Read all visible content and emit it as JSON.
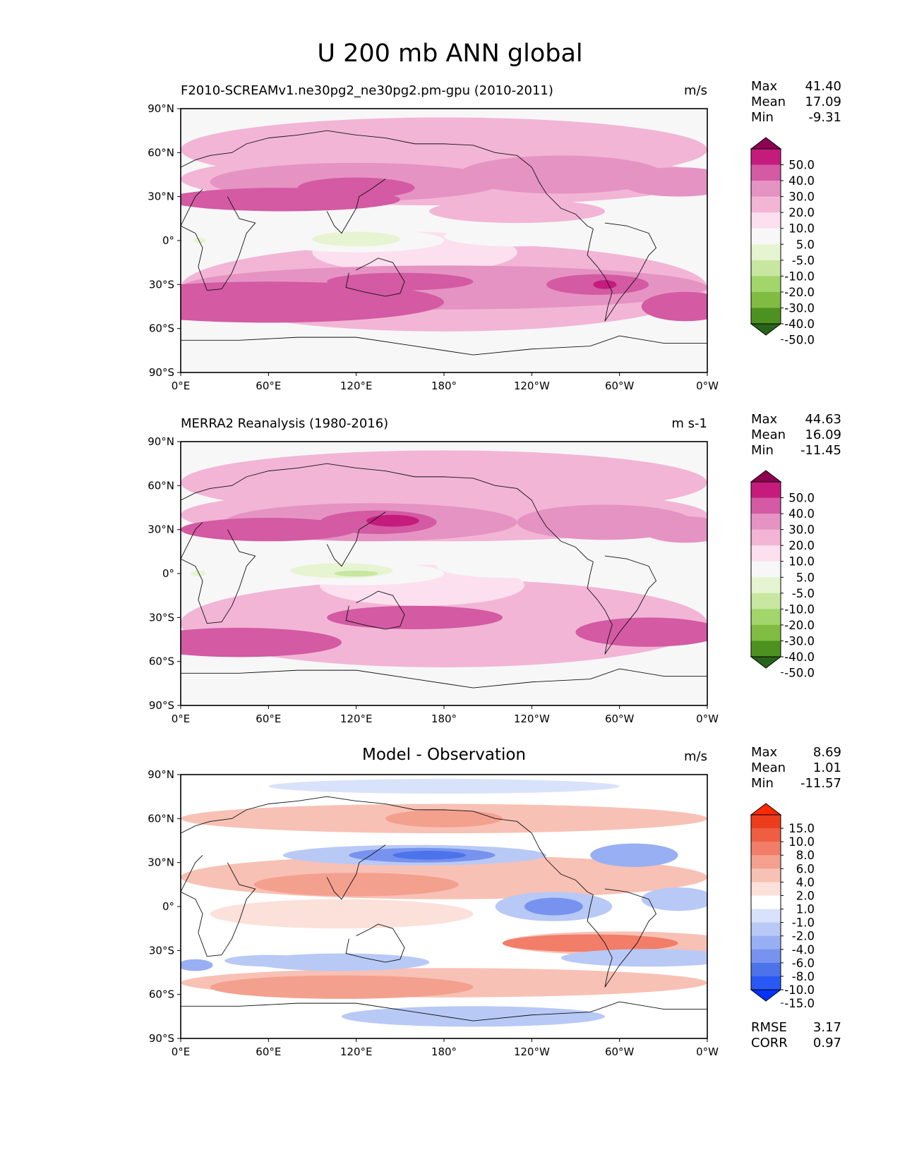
{
  "figure": {
    "title": "U 200 mb ANN global"
  },
  "colors": {
    "seq": [
      "#276419",
      "#4d9221",
      "#7fbc41",
      "#a2d56a",
      "#c7e7a0",
      "#e6f4d1",
      "#f7f7f7",
      "#fde0ef",
      "#f2b5d6",
      "#e593c3",
      "#d35aa3",
      "#c51b7d",
      "#8e0152"
    ],
    "diff": [
      "#0433ff",
      "#2a58f5",
      "#4d73ea",
      "#7793ef",
      "#98aff3",
      "#b8c9f6",
      "#d9e2fb",
      "#ffffff",
      "#fce0da",
      "#f8c1b5",
      "#f4a08f",
      "#f27d68",
      "#ef5e43",
      "#ec3e1e",
      "#fe2b00"
    ]
  },
  "chart_data": [
    {
      "type": "heatmap",
      "title": "F2010-SCREAMv1.ne30pg2_ne30pg2.pm-gpu (2010-2011)",
      "units": "m/s",
      "stats": {
        "max_label": "Max",
        "max": "41.40",
        "mean_label": "Mean",
        "mean": "17.09",
        "min_label": "Min",
        "min": "-9.31"
      },
      "xlabels": [
        "0°E",
        "60°E",
        "120°E",
        "180°",
        "120°W",
        "60°W",
        "0°W"
      ],
      "ylabels": [
        "90°N",
        "60°N",
        "30°N",
        "0°",
        "30°S",
        "60°S",
        "90°S"
      ],
      "xlim": [
        0,
        360
      ],
      "ylim": [
        -90,
        90
      ],
      "levels": [
        "50.0",
        "40.0",
        "30.0",
        "20.0",
        "10.0",
        "5.0",
        "-5.0",
        "-10.0",
        "-20.0",
        "-30.0",
        "-40.0",
        "-50.0"
      ],
      "cmap": "seq",
      "blobs": [
        {
          "lon": 180,
          "lat": 62,
          "rx": 180,
          "ry": 22,
          "level": 8
        },
        {
          "lon": 180,
          "lat": 42,
          "rx": 180,
          "ry": 18,
          "level": 8
        },
        {
          "lon": 180,
          "lat": -32,
          "rx": 180,
          "ry": 30,
          "level": 8
        },
        {
          "lon": 160,
          "lat": -8,
          "rx": 70,
          "ry": 14,
          "level": 7
        },
        {
          "lon": 120,
          "lat": 40,
          "rx": 100,
          "ry": 13,
          "level": 9
        },
        {
          "lon": 260,
          "lat": 45,
          "rx": 70,
          "ry": 13,
          "level": 9
        },
        {
          "lon": 340,
          "lat": 40,
          "rx": 40,
          "ry": 10,
          "level": 9
        },
        {
          "lon": 230,
          "lat": 20,
          "rx": 60,
          "ry": 8,
          "level": 8
        },
        {
          "lon": 70,
          "lat": 28,
          "rx": 80,
          "ry": 8,
          "level": 10
        },
        {
          "lon": 120,
          "lat": 36,
          "rx": 40,
          "ry": 7,
          "level": 10
        },
        {
          "lon": 180,
          "lat": -32,
          "rx": 180,
          "ry": 15,
          "level": 9
        },
        {
          "lon": 60,
          "lat": -42,
          "rx": 120,
          "ry": 14,
          "level": 10
        },
        {
          "lon": 150,
          "lat": -28,
          "rx": 50,
          "ry": 6,
          "level": 10
        },
        {
          "lon": 285,
          "lat": -30,
          "rx": 35,
          "ry": 7,
          "level": 10
        },
        {
          "lon": 290,
          "lat": -30,
          "rx": 8,
          "ry": 3,
          "level": 11
        },
        {
          "lon": 345,
          "lat": -45,
          "rx": 30,
          "ry": 10,
          "level": 10
        },
        {
          "lon": 120,
          "lat": 0,
          "rx": 60,
          "ry": 8,
          "level": 6
        },
        {
          "lon": 230,
          "lat": 3,
          "rx": 50,
          "ry": 7,
          "level": 6
        },
        {
          "lon": 120,
          "lat": 1,
          "rx": 30,
          "ry": 5,
          "level": 5
        },
        {
          "lon": 13,
          "lat": 0,
          "rx": 4,
          "ry": 2,
          "level": 5
        }
      ]
    },
    {
      "type": "heatmap",
      "title": "MERRA2 Reanalysis (1980-2016)",
      "units": "m s-1",
      "stats": {
        "max_label": "Max",
        "max": "44.63",
        "mean_label": "Mean",
        "mean": "16.09",
        "min_label": "Min",
        "min": "-11.45"
      },
      "xlabels": [
        "0°E",
        "60°E",
        "120°E",
        "180°",
        "120°W",
        "60°W",
        "0°W"
      ],
      "ylabels": [
        "90°N",
        "60°N",
        "30°N",
        "0°",
        "30°S",
        "60°S",
        "90°S"
      ],
      "xlim": [
        0,
        360
      ],
      "ylim": [
        -90,
        90
      ],
      "levels": [
        "50.0",
        "40.0",
        "30.0",
        "20.0",
        "10.0",
        "5.0",
        "-5.0",
        "-10.0",
        "-20.0",
        "-30.0",
        "-40.0",
        "-50.0"
      ],
      "cmap": "seq",
      "blobs": [
        {
          "lon": 180,
          "lat": 62,
          "rx": 180,
          "ry": 22,
          "level": 8
        },
        {
          "lon": 180,
          "lat": 40,
          "rx": 180,
          "ry": 18,
          "level": 8
        },
        {
          "lon": 180,
          "lat": -34,
          "rx": 180,
          "ry": 30,
          "level": 8
        },
        {
          "lon": 165,
          "lat": -8,
          "rx": 70,
          "ry": 14,
          "level": 7
        },
        {
          "lon": 130,
          "lat": 35,
          "rx": 100,
          "ry": 13,
          "level": 9
        },
        {
          "lon": 290,
          "lat": 35,
          "rx": 60,
          "ry": 12,
          "level": 9
        },
        {
          "lon": 345,
          "lat": 30,
          "rx": 30,
          "ry": 9,
          "level": 9
        },
        {
          "lon": 60,
          "lat": 30,
          "rx": 60,
          "ry": 8,
          "level": 10
        },
        {
          "lon": 135,
          "lat": 35,
          "rx": 40,
          "ry": 8,
          "level": 10
        },
        {
          "lon": 145,
          "lat": 36,
          "rx": 18,
          "ry": 4,
          "level": 11
        },
        {
          "lon": 160,
          "lat": -30,
          "rx": 60,
          "ry": 8,
          "level": 10
        },
        {
          "lon": 40,
          "lat": -47,
          "rx": 70,
          "ry": 10,
          "level": 10
        },
        {
          "lon": 320,
          "lat": -40,
          "rx": 50,
          "ry": 10,
          "level": 10
        },
        {
          "lon": 120,
          "lat": 0,
          "rx": 60,
          "ry": 8,
          "level": 6
        },
        {
          "lon": 225,
          "lat": 5,
          "rx": 50,
          "ry": 8,
          "level": 6
        },
        {
          "lon": 110,
          "lat": 2,
          "rx": 35,
          "ry": 5,
          "level": 5
        },
        {
          "lon": 120,
          "lat": 0,
          "rx": 15,
          "ry": 2,
          "level": 4
        },
        {
          "lon": 12,
          "lat": 0,
          "rx": 5,
          "ry": 2,
          "level": 5
        }
      ]
    },
    {
      "type": "heatmap",
      "title": "Model - Observation",
      "units": "m/s",
      "stats": {
        "max_label": "Max",
        "max": "8.69",
        "mean_label": "Mean",
        "mean": "1.01",
        "min_label": "Min",
        "min": "-11.57"
      },
      "extra": {
        "rmse_label": "RMSE",
        "rmse": "3.17",
        "corr_label": "CORR",
        "corr": "0.97"
      },
      "xlabels": [
        "0°E",
        "60°E",
        "120°E",
        "180°",
        "120°W",
        "60°W",
        "0°W"
      ],
      "ylabels": [
        "90°N",
        "60°N",
        "30°N",
        "0°",
        "30°S",
        "60°S",
        "90°S"
      ],
      "xlim": [
        0,
        360
      ],
      "ylim": [
        -90,
        90
      ],
      "levels": [
        "15.0",
        "10.0",
        "8.0",
        "6.0",
        "4.0",
        "2.0",
        "1.0",
        "-1.0",
        "-2.0",
        "-4.0",
        "-6.0",
        "-8.0",
        "-10.0",
        "-15.0"
      ],
      "cmap": "diff",
      "blobs": [
        {
          "lon": 180,
          "lat": 20,
          "rx": 180,
          "ry": 15,
          "level": 9
        },
        {
          "lon": 180,
          "lat": 60,
          "rx": 180,
          "ry": 10,
          "level": 9
        },
        {
          "lon": 180,
          "lat": -52,
          "rx": 180,
          "ry": 10,
          "level": 9
        },
        {
          "lon": 300,
          "lat": -25,
          "rx": 80,
          "ry": 8,
          "level": 9
        },
        {
          "lon": 110,
          "lat": -5,
          "rx": 90,
          "ry": 10,
          "level": 8
        },
        {
          "lon": 160,
          "lat": 35,
          "rx": 90,
          "ry": 7,
          "level": 5
        },
        {
          "lon": 165,
          "lat": 35,
          "rx": 50,
          "ry": 5,
          "level": 3
        },
        {
          "lon": 170,
          "lat": 35,
          "rx": 25,
          "ry": 3,
          "level": 2
        },
        {
          "lon": 120,
          "lat": 15,
          "rx": 70,
          "ry": 8,
          "level": 10
        },
        {
          "lon": 110,
          "lat": -55,
          "rx": 90,
          "ry": 8,
          "level": 10
        },
        {
          "lon": 280,
          "lat": -25,
          "rx": 60,
          "ry": 6,
          "level": 11
        },
        {
          "lon": 180,
          "lat": 60,
          "rx": 40,
          "ry": 6,
          "level": 10
        },
        {
          "lon": 255,
          "lat": 0,
          "rx": 40,
          "ry": 10,
          "level": 5
        },
        {
          "lon": 255,
          "lat": 0,
          "rx": 20,
          "ry": 6,
          "level": 3
        },
        {
          "lon": 320,
          "lat": -35,
          "rx": 60,
          "ry": 6,
          "level": 5
        },
        {
          "lon": 110,
          "lat": -38,
          "rx": 60,
          "ry": 6,
          "level": 5
        },
        {
          "lon": 310,
          "lat": 35,
          "rx": 30,
          "ry": 8,
          "level": 4
        },
        {
          "lon": 200,
          "lat": -75,
          "rx": 90,
          "ry": 7,
          "level": 5
        },
        {
          "lon": 60,
          "lat": -37,
          "rx": 30,
          "ry": 4,
          "level": 5
        },
        {
          "lon": 10,
          "lat": -40,
          "rx": 12,
          "ry": 4,
          "level": 4
        },
        {
          "lon": 340,
          "lat": 5,
          "rx": 25,
          "ry": 8,
          "level": 5
        },
        {
          "lon": 180,
          "lat": 82,
          "rx": 120,
          "ry": 5,
          "level": 6
        }
      ]
    }
  ]
}
